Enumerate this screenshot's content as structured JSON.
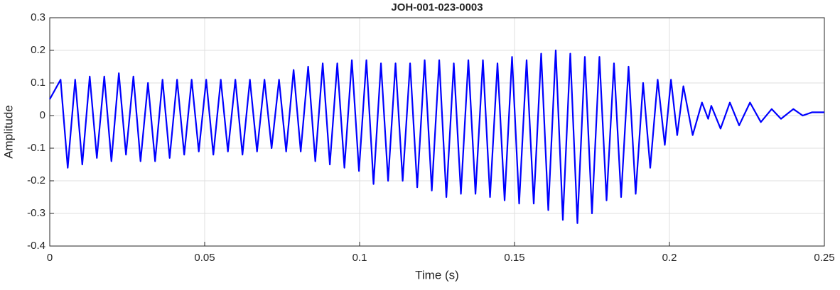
{
  "chart_data": {
    "type": "line",
    "title": "JOH-001-023-0003",
    "xlabel": "Time (s)",
    "ylabel": "Amplitude",
    "xlim": [
      0,
      0.25
    ],
    "xticks": [
      0,
      0.05,
      0.1,
      0.15,
      0.2,
      0.25
    ],
    "ylim": [
      -0.4,
      0.3
    ],
    "yticks": [
      -0.4,
      -0.3,
      -0.2,
      -0.1,
      0,
      0.1,
      0.2,
      0.3
    ],
    "grid": true,
    "series": [
      {
        "color": "#0000ff",
        "x": [
          0,
          0.0035,
          0.0058,
          0.0082,
          0.0105,
          0.0129,
          0.0152,
          0.0176,
          0.0199,
          0.0223,
          0.0246,
          0.027,
          0.0293,
          0.0317,
          0.034,
          0.0364,
          0.0387,
          0.0411,
          0.0434,
          0.0458,
          0.0481,
          0.0505,
          0.0528,
          0.0552,
          0.0575,
          0.0599,
          0.0622,
          0.0646,
          0.0669,
          0.0693,
          0.0716,
          0.074,
          0.0763,
          0.0787,
          0.081,
          0.0834,
          0.0857,
          0.0881,
          0.0904,
          0.0928,
          0.0951,
          0.0975,
          0.0998,
          0.1022,
          0.1045,
          0.1069,
          0.1092,
          0.1116,
          0.1139,
          0.1163,
          0.1186,
          0.121,
          0.1233,
          0.1257,
          0.128,
          0.1304,
          0.1327,
          0.1351,
          0.1374,
          0.1398,
          0.1421,
          0.1445,
          0.1468,
          0.1492,
          0.1515,
          0.1539,
          0.1562,
          0.1586,
          0.1609,
          0.1633,
          0.1656,
          0.168,
          0.1703,
          0.1727,
          0.175,
          0.1774,
          0.1797,
          0.1821,
          0.1844,
          0.1868,
          0.1891,
          0.1915,
          0.1938,
          0.1962,
          0.1985,
          0.2005,
          0.2025,
          0.2045,
          0.2075,
          0.2105,
          0.2125,
          0.2135,
          0.2165,
          0.2195,
          0.2225,
          0.226,
          0.2295,
          0.233,
          0.236,
          0.24,
          0.243,
          0.246,
          0.25
        ],
        "values": [
          0.05,
          0.11,
          -0.16,
          0.11,
          -0.15,
          0.12,
          -0.13,
          0.12,
          -0.14,
          0.13,
          -0.12,
          0.12,
          -0.14,
          0.1,
          -0.14,
          0.11,
          -0.13,
          0.11,
          -0.12,
          0.11,
          -0.11,
          0.11,
          -0.12,
          0.11,
          -0.11,
          0.11,
          -0.12,
          0.11,
          -0.11,
          0.11,
          -0.1,
          0.11,
          -0.11,
          0.14,
          -0.11,
          0.15,
          -0.14,
          0.16,
          -0.15,
          0.16,
          -0.16,
          0.17,
          -0.17,
          0.17,
          -0.21,
          0.16,
          -0.2,
          0.16,
          -0.2,
          0.16,
          -0.22,
          0.17,
          -0.23,
          0.17,
          -0.25,
          0.16,
          -0.24,
          0.17,
          -0.24,
          0.17,
          -0.25,
          0.16,
          -0.26,
          0.18,
          -0.27,
          0.17,
          -0.27,
          0.19,
          -0.29,
          0.2,
          -0.32,
          0.19,
          -0.33,
          0.18,
          -0.3,
          0.18,
          -0.26,
          0.16,
          -0.25,
          0.15,
          -0.24,
          0.1,
          -0.16,
          0.11,
          -0.09,
          0.11,
          -0.06,
          0.09,
          -0.06,
          0.04,
          -0.01,
          0.03,
          -0.04,
          0.04,
          -0.03,
          0.04,
          -0.02,
          0.02,
          -0.01,
          0.02,
          0,
          0.01,
          0.01
        ]
      }
    ]
  }
}
